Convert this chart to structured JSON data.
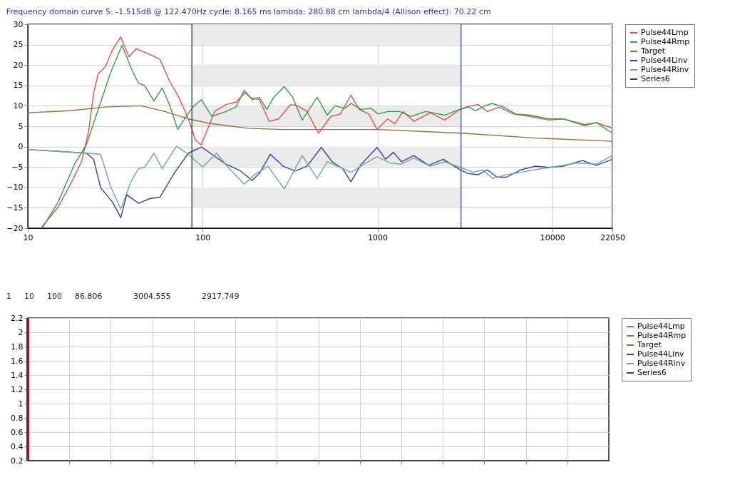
{
  "chart_data": [
    {
      "type": "line",
      "title": "Frequency domain curve 5:  -1.515dB @ 122.470Hz    cycle: 8.165 ms    lambda: 280.88 cm    lambda/4 (Allison effect): 70.22 cm",
      "log": "x",
      "xlim": [
        10,
        22050
      ],
      "xticks": [
        10,
        100,
        1000,
        10000,
        22050
      ],
      "ylim": [
        -20,
        30
      ],
      "yticks": [
        -20,
        -15,
        -10,
        -5,
        0,
        5,
        10,
        15,
        20,
        25,
        30
      ],
      "grid": true,
      "legend": "right",
      "ref_lines": [
        {
          "axis": "x",
          "value": 86.806,
          "color": "#2f5f4f"
        },
        {
          "axis": "x",
          "value": 3004.555,
          "color": "#5060b0"
        }
      ],
      "bands": [
        {
          "axis": "y",
          "from": 25,
          "to": 30,
          "color": "#ebebeb"
        },
        {
          "axis": "y",
          "from": 15,
          "to": 20,
          "color": "#ebebeb"
        },
        {
          "axis": "y",
          "from": 5,
          "to": 10,
          "color": "#ebebeb"
        },
        {
          "axis": "y",
          "from": -5,
          "to": 0,
          "color": "#ebebeb"
        },
        {
          "axis": "y",
          "from": -15,
          "to": -10,
          "color": "#ebebeb"
        }
      ],
      "series": [
        {
          "name": "Pulse44Lmp",
          "color": "#e05050",
          "x": [
            11.9,
            14.9,
            17.4,
            20.3,
            22.3,
            23.8,
            25.3,
            27.8,
            30.5,
            34,
            37.9,
            41.7,
            50.3,
            57,
            64.6,
            73.1,
            82.9,
            91,
            98,
            106,
            117,
            136,
            155,
            175,
            187,
            211,
            240,
            272,
            318,
            348,
            395,
            460,
            541,
            613,
            705,
            787,
            891,
            994,
            1144,
            1256,
            1401,
            1614,
            2008,
            2421,
            2965,
            3206,
            3750,
            4249,
            4966,
            5994,
            7457,
            9573,
            11540,
            15300,
            17880,
            22050
          ],
          "values": [
            -20,
            -14.8,
            -9.5,
            -3.7,
            3.9,
            13.2,
            17.9,
            19.6,
            23.7,
            26.9,
            22,
            24,
            22.5,
            21.4,
            16.1,
            12.1,
            6.8,
            1.6,
            0.4,
            3.9,
            8.6,
            10.3,
            10.9,
            13.2,
            12.1,
            11.5,
            6.2,
            6.8,
            10.3,
            10,
            8.6,
            3.3,
            7.4,
            8,
            12.6,
            9.1,
            8,
            4.2,
            6.8,
            5.6,
            8.6,
            6.2,
            8.3,
            6.5,
            9.1,
            9.7,
            10.3,
            8.6,
            9.7,
            8,
            7.4,
            6.5,
            6.8,
            5.1,
            5.9,
            4.5
          ]
        },
        {
          "name": "Pulse44Rmp",
          "color": "#3a9a4a",
          "x": [
            12.1,
            14.9,
            18.5,
            21.6,
            25.3,
            29.6,
            34.6,
            39.2,
            43,
            46.5,
            52.7,
            58.7,
            64.6,
            72,
            80.3,
            88,
            98.4,
            113,
            136,
            155,
            173,
            192,
            211,
            233,
            255,
            293,
            327,
            371,
            452,
            516,
            571,
            650,
            705,
            808,
            918,
            1009,
            1144,
            1336,
            1561,
            1891,
            2421,
            2940,
            3320,
            3640,
            4120,
            4520,
            5268,
            6170,
            7457,
            9573,
            11540,
            15300,
            17880,
            22050
          ],
          "values": [
            -20,
            -13.6,
            -4.3,
            0.4,
            9.1,
            17.9,
            24.9,
            19,
            15.5,
            15,
            11.2,
            14.4,
            10.3,
            4.2,
            7.4,
            9.7,
            11.5,
            7.4,
            8.6,
            9.7,
            13.8,
            11.5,
            12.1,
            9.1,
            12.1,
            14.7,
            12.1,
            6.5,
            12.1,
            7.7,
            10,
            9.4,
            10.6,
            9.1,
            9.4,
            8,
            8.6,
            8.6,
            7.4,
            8.6,
            7.7,
            9.1,
            9.7,
            8.8,
            10,
            10.6,
            9.7,
            8,
            7.7,
            6.8,
            6.8,
            5.4,
            5.9,
            3.3
          ]
        },
        {
          "name": "Target",
          "color": "#9a6a3a",
          "x": [
            10,
            17.4,
            27.8,
            44.4,
            60.8,
            82.9,
            113,
            181,
            289,
            1005,
            3020,
            8020,
            22050
          ],
          "values": [
            8.3,
            8.8,
            9.7,
            10,
            8.6,
            6.8,
            5.6,
            4.5,
            4.2,
            4.2,
            3.3,
            2.1,
            1.3
          ]
        },
        {
          "name": "Pulse44Linv",
          "color": "#3a3ab0",
          "x": [
            10,
            21.6,
            23.8,
            26.1,
            30.5,
            34,
            36.8,
            43,
            50.3,
            57,
            68.6,
            82.9,
            98.4,
            113,
            136,
            165,
            192,
            211,
            244,
            289,
            338,
            395,
            477,
            550,
            631,
            705,
            808,
            994,
            1112,
            1234,
            1372,
            1614,
            1964,
            2377,
            2965,
            3310,
            3750,
            4249,
            4830,
            5480,
            6610,
            7970,
            9573,
            11540,
            14830,
            17880,
            22050
          ],
          "values": [
            -0.7,
            -1.6,
            -3.1,
            -10.1,
            -13.6,
            -17.4,
            -11.8,
            -13.9,
            -12.7,
            -12.4,
            -6.6,
            -1.6,
            -0.1,
            -1.9,
            -4.3,
            -6,
            -8.3,
            -6.6,
            -1.9,
            -4.8,
            -6,
            -4.8,
            -0.2,
            -3.7,
            -5.4,
            -8.6,
            -4.3,
            -0.2,
            -3.1,
            -1.4,
            -3.7,
            -2.2,
            -4.6,
            -3.1,
            -5.7,
            -6.6,
            -6.9,
            -5.7,
            -7.5,
            -7.5,
            -5.7,
            -4.8,
            -5.1,
            -4.8,
            -3.4,
            -4.6,
            -3.1
          ]
        },
        {
          "name": "Pulse44Rinv",
          "color": "#70a890",
          "x": [
            10,
            21.6,
            26.1,
            29.6,
            34,
            39.2,
            43,
            46.5,
            52.7,
            58.7,
            70.8,
            82.9,
            100,
            120,
            142,
            173,
            198,
            236,
            293,
            371,
            452,
            516,
            613,
            705,
            837,
            994,
            1180,
            1372,
            1614,
            2008,
            2421,
            2965,
            3530,
            4010,
            4560,
            5480,
            6610,
            8700,
            10790,
            13890,
            17880,
            22050
          ],
          "values": [
            -0.7,
            -1.6,
            -1.9,
            -9.5,
            -15.3,
            -8.3,
            -5.4,
            -5.1,
            -1.6,
            -5.4,
            0.1,
            -1.9,
            -5,
            -1.6,
            -5.4,
            -9.2,
            -6.9,
            -4.8,
            -10.4,
            -2.2,
            -7.8,
            -3.7,
            -5.1,
            -6.3,
            -4.3,
            -2.5,
            -4,
            -4.3,
            -2.8,
            -4.8,
            -3.7,
            -5.1,
            -6.3,
            -5.7,
            -7.8,
            -6.9,
            -6.3,
            -5.4,
            -4.8,
            -4,
            -4.3,
            -2.2
          ]
        },
        {
          "name": "Series6",
          "color": "#404040"
        }
      ]
    },
    {
      "type": "line",
      "annotations": [
        "1",
        "10",
        "100",
        "86.806",
        "3004.555",
        "2917.749"
      ],
      "categories": [
        null,
        null,
        null,
        null,
        null,
        null,
        null,
        null,
        null,
        null,
        null,
        null,
        null,
        null
      ],
      "ylim": [
        0.2,
        2.2
      ],
      "yticks": [
        0.2,
        0.4,
        0.6,
        0.8,
        1,
        1.2,
        1.4,
        1.6,
        1.8,
        2,
        2.2
      ],
      "tick_labels": "y",
      "grid": true,
      "legend": "right",
      "series": [
        {
          "name": "Pulse44Lmp",
          "color": "#e05050",
          "values": [
            null,
            null,
            null,
            null,
            null,
            null,
            null,
            null,
            null,
            null,
            null,
            null,
            null,
            null
          ]
        },
        {
          "name": "Pulse44Rmp",
          "color": "#3a9a4a",
          "values": [
            null,
            null,
            null,
            null,
            null,
            null,
            null,
            null,
            null,
            null,
            null,
            null,
            null,
            null
          ]
        },
        {
          "name": "Target",
          "color": "#9a6a3a",
          "values": [
            null,
            null,
            null,
            null,
            null,
            null,
            null,
            null,
            null,
            null,
            null,
            null,
            null,
            null
          ]
        },
        {
          "name": "Pulse44Linv",
          "color": "#3a3ab0",
          "values": [
            null,
            null,
            null,
            null,
            null,
            null,
            null,
            null,
            null,
            null,
            null,
            null,
            null,
            null
          ]
        },
        {
          "name": "Pulse44Rinv",
          "color": "#70a890",
          "values": [
            null,
            null,
            null,
            null,
            null,
            null,
            null,
            null,
            null,
            null,
            null,
            null,
            null,
            null
          ]
        },
        {
          "name": "Series6",
          "color": "#404040",
          "values": [
            null,
            null,
            null,
            null,
            null,
            null,
            null,
            null,
            null,
            null,
            null,
            null,
            null,
            null
          ]
        }
      ]
    }
  ]
}
